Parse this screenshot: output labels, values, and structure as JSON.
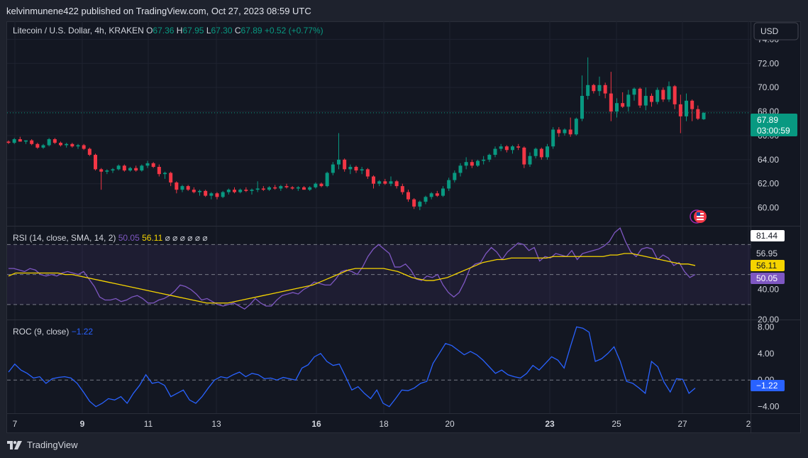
{
  "header": {
    "published": "kelvinmunene422 published on TradingView.com, Oct 27, 2023 08:59 UTC"
  },
  "legend": {
    "symbol": "Litecoin / U.S. Dollar, 4h, KRAKEN",
    "o_label": "O",
    "o_value": "67.36",
    "h_label": "H",
    "h_value": "67.95",
    "l_label": "L",
    "l_value": "67.30",
    "c_label": "C",
    "c_value": "67.89",
    "change": "+0.52 (+0.77%)"
  },
  "currency_button": "USD",
  "price_badge": {
    "value": "67.89",
    "countdown": "03:00:59",
    "color": "#089981"
  },
  "rsi_legend": {
    "title": "RSI (14, close, SMA, 14, 2)",
    "rsi": "50.05",
    "sma": "56.11",
    "na": "⌀ ⌀ ⌀ ⌀ ⌀ ⌀"
  },
  "roc_legend": {
    "title": "ROC (9, close)",
    "value": "−1.22"
  },
  "footer": {
    "brand": "TradingView"
  },
  "colors": {
    "up": "#089981",
    "down": "#f23645",
    "rsi": "#7e57c2",
    "sma": "#f5d400",
    "roc": "#2962ff"
  },
  "chart_data": [
    {
      "type": "candlestick",
      "symbol": "LTC/USD",
      "interval": "4h",
      "ylim": [
        58.5,
        75.5
      ],
      "y_ticks": [
        "74.00",
        "72.00",
        "70.00",
        "68.00",
        "66.00",
        "64.00",
        "62.00",
        "60.00"
      ],
      "x_ticks": [
        "7",
        "9",
        "11",
        "13",
        "16",
        "18",
        "20",
        "23",
        "25",
        "27",
        "2"
      ],
      "last_price": 67.89,
      "candles": [
        [
          65.5,
          65.6,
          65.3,
          65.4
        ],
        [
          65.4,
          65.8,
          65.3,
          65.7
        ],
        [
          65.7,
          65.9,
          65.5,
          65.5
        ],
        [
          65.5,
          65.6,
          65.3,
          65.6
        ],
        [
          65.6,
          65.7,
          65.2,
          65.3
        ],
        [
          65.3,
          65.4,
          64.9,
          65.0
        ],
        [
          65.0,
          65.3,
          64.9,
          65.2
        ],
        [
          65.2,
          65.8,
          65.1,
          65.7
        ],
        [
          65.7,
          65.8,
          65.3,
          65.4
        ],
        [
          65.4,
          65.5,
          65.1,
          65.2
        ],
        [
          65.2,
          65.4,
          65.0,
          65.3
        ],
        [
          65.3,
          65.4,
          65.0,
          65.1
        ],
        [
          65.1,
          65.3,
          64.9,
          65.2
        ],
        [
          65.2,
          65.3,
          64.8,
          64.9
        ],
        [
          64.9,
          65.0,
          64.3,
          64.4
        ],
        [
          64.4,
          64.5,
          63.1,
          63.2
        ],
        [
          63.2,
          63.3,
          61.5,
          63.0
        ],
        [
          63.0,
          63.2,
          62.8,
          63.1
        ],
        [
          63.1,
          63.3,
          62.9,
          63.2
        ],
        [
          63.2,
          63.6,
          63.1,
          63.5
        ],
        [
          63.5,
          63.6,
          63.0,
          63.1
        ],
        [
          63.1,
          63.4,
          63.0,
          63.3
        ],
        [
          63.3,
          63.5,
          63.0,
          63.1
        ],
        [
          63.1,
          63.6,
          63.0,
          63.5
        ],
        [
          63.5,
          63.9,
          63.3,
          63.7
        ],
        [
          63.7,
          63.8,
          63.3,
          63.4
        ],
        [
          63.4,
          63.6,
          62.6,
          62.8
        ],
        [
          62.8,
          63.0,
          62.4,
          62.9
        ],
        [
          62.9,
          63.0,
          61.8,
          62.1
        ],
        [
          62.1,
          62.2,
          61.2,
          61.5
        ],
        [
          61.5,
          61.9,
          61.3,
          61.8
        ],
        [
          61.8,
          61.9,
          61.4,
          61.5
        ],
        [
          61.5,
          61.7,
          61.2,
          61.3
        ],
        [
          61.3,
          61.5,
          61.0,
          61.4
        ],
        [
          61.4,
          61.5,
          60.9,
          61.0
        ],
        [
          61.0,
          61.3,
          60.7,
          61.2
        ],
        [
          61.2,
          61.3,
          60.7,
          60.9
        ],
        [
          60.9,
          61.4,
          60.8,
          61.3
        ],
        [
          61.3,
          61.6,
          61.1,
          61.5
        ],
        [
          61.5,
          61.7,
          61.2,
          61.3
        ],
        [
          61.3,
          61.6,
          61.2,
          61.5
        ],
        [
          61.5,
          61.7,
          61.3,
          61.4
        ],
        [
          61.4,
          61.6,
          61.1,
          61.5
        ],
        [
          61.5,
          62.2,
          61.3,
          61.6
        ],
        [
          61.6,
          61.8,
          61.4,
          61.5
        ],
        [
          61.5,
          61.8,
          61.4,
          61.7
        ],
        [
          61.7,
          61.9,
          61.5,
          61.6
        ],
        [
          61.6,
          61.9,
          61.4,
          61.8
        ],
        [
          61.8,
          62.0,
          61.6,
          61.7
        ],
        [
          61.7,
          61.8,
          61.5,
          61.6
        ],
        [
          61.6,
          61.8,
          61.4,
          61.7
        ],
        [
          61.7,
          61.8,
          61.5,
          61.5
        ],
        [
          61.5,
          61.8,
          61.4,
          61.7
        ],
        [
          61.7,
          62.1,
          61.6,
          62.0
        ],
        [
          62.0,
          62.1,
          61.7,
          61.8
        ],
        [
          61.8,
          63.0,
          61.7,
          62.9
        ],
        [
          62.9,
          63.8,
          62.7,
          63.6
        ],
        [
          63.6,
          66.2,
          63.2,
          64.0
        ],
        [
          64.0,
          64.1,
          63.0,
          63.2
        ],
        [
          63.2,
          63.6,
          62.8,
          63.4
        ],
        [
          63.4,
          63.5,
          62.9,
          63.1
        ],
        [
          63.1,
          63.4,
          62.8,
          63.2
        ],
        [
          63.2,
          63.3,
          62.4,
          62.6
        ],
        [
          62.6,
          62.7,
          61.6,
          62.0
        ],
        [
          62.0,
          62.3,
          61.8,
          62.2
        ],
        [
          62.2,
          62.4,
          61.9,
          62.0
        ],
        [
          62.0,
          62.6,
          61.8,
          62.2
        ],
        [
          62.2,
          62.3,
          61.6,
          61.8
        ],
        [
          61.8,
          62.0,
          61.1,
          61.3
        ],
        [
          61.3,
          61.5,
          60.5,
          60.7
        ],
        [
          60.7,
          60.8,
          59.9,
          60.1
        ],
        [
          60.1,
          60.6,
          59.8,
          60.5
        ],
        [
          60.5,
          61.0,
          60.3,
          60.9
        ],
        [
          60.9,
          61.3,
          60.7,
          61.2
        ],
        [
          61.2,
          61.4,
          60.9,
          61.0
        ],
        [
          61.0,
          61.8,
          60.9,
          61.6
        ],
        [
          61.6,
          62.5,
          61.4,
          62.3
        ],
        [
          62.3,
          63.1,
          62.1,
          62.9
        ],
        [
          62.9,
          63.7,
          62.6,
          63.5
        ],
        [
          63.5,
          64.2,
          63.2,
          63.8
        ],
        [
          63.8,
          64.0,
          63.3,
          63.5
        ],
        [
          63.5,
          64.0,
          63.4,
          63.9
        ],
        [
          63.9,
          64.3,
          63.6,
          64.0
        ],
        [
          64.0,
          64.5,
          63.8,
          64.4
        ],
        [
          64.4,
          65.1,
          64.2,
          64.9
        ],
        [
          64.9,
          65.3,
          64.7,
          65.1
        ],
        [
          65.1,
          65.2,
          64.6,
          64.8
        ],
        [
          64.8,
          65.2,
          64.5,
          65.1
        ],
        [
          65.1,
          65.3,
          64.8,
          65.0
        ],
        [
          65.0,
          65.1,
          63.3,
          63.6
        ],
        [
          63.6,
          64.6,
          63.4,
          64.3
        ],
        [
          64.3,
          65.0,
          64.1,
          64.9
        ],
        [
          64.9,
          65.0,
          64.0,
          64.2
        ],
        [
          64.2,
          65.3,
          64.0,
          65.1
        ],
        [
          65.1,
          66.7,
          64.9,
          66.5
        ],
        [
          66.5,
          66.7,
          65.9,
          66.2
        ],
        [
          66.2,
          66.6,
          66.0,
          66.5
        ],
        [
          66.5,
          67.5,
          65.9,
          66.1
        ],
        [
          66.1,
          67.5,
          66.0,
          67.4
        ],
        [
          67.4,
          71.0,
          67.2,
          69.3
        ],
        [
          69.3,
          72.5,
          69.0,
          70.2
        ],
        [
          70.2,
          70.3,
          69.5,
          69.7
        ],
        [
          69.7,
          70.9,
          69.3,
          70.2
        ],
        [
          70.2,
          70.4,
          69.1,
          69.5
        ],
        [
          69.5,
          71.3,
          67.2,
          68.0
        ],
        [
          68.0,
          69.1,
          67.5,
          68.7
        ],
        [
          68.7,
          69.6,
          68.3,
          68.4
        ],
        [
          68.4,
          69.8,
          68.0,
          69.4
        ],
        [
          69.4,
          70.0,
          68.9,
          69.9
        ],
        [
          69.9,
          70.0,
          68.3,
          68.5
        ],
        [
          68.5,
          70.0,
          68.1,
          69.3
        ],
        [
          69.3,
          69.5,
          68.4,
          68.8
        ],
        [
          68.8,
          70.0,
          68.6,
          69.8
        ],
        [
          69.8,
          70.0,
          68.8,
          69.0
        ],
        [
          69.0,
          70.5,
          68.8,
          70.1
        ],
        [
          70.1,
          70.2,
          68.2,
          68.6
        ],
        [
          68.6,
          69.4,
          66.2,
          67.6
        ],
        [
          67.6,
          69.5,
          67.2,
          68.9
        ],
        [
          68.9,
          69.0,
          67.2,
          68.2
        ],
        [
          68.2,
          68.5,
          67.3,
          67.4
        ],
        [
          67.36,
          67.95,
          67.3,
          67.89
        ]
      ]
    },
    {
      "type": "line",
      "name": "RSI (14, close, SMA, 14, 2)",
      "ylim": [
        20,
        82
      ],
      "y_ticks": [
        "20.00",
        "40.00"
      ],
      "bands": [
        70,
        50,
        30
      ],
      "labels": {
        "rsi_max": "81.44",
        "upper": "56.95",
        "sma": "56.11",
        "rsi": "50.05"
      },
      "rsi": [
        54,
        54,
        53,
        52,
        54,
        53,
        50,
        49,
        50,
        49,
        51,
        52,
        51,
        50,
        52,
        47,
        42,
        35,
        33,
        33,
        34,
        32,
        33,
        35,
        36,
        34,
        31,
        31,
        33,
        34,
        36,
        39,
        43,
        42,
        40,
        37,
        33,
        34,
        32,
        30,
        29,
        30,
        31,
        29,
        27,
        30,
        34,
        31,
        29,
        29,
        33,
        36,
        37,
        38,
        37,
        40,
        42,
        45,
        44,
        43,
        43,
        47,
        52,
        53,
        52,
        50,
        55,
        62,
        67,
        70,
        67,
        64,
        55,
        55,
        57,
        53,
        47,
        46,
        49,
        48,
        50,
        43,
        38,
        35,
        38,
        45,
        54,
        57,
        58,
        64,
        68,
        65,
        60,
        65,
        68,
        71,
        70,
        66,
        68,
        59,
        62,
        61,
        64,
        63,
        62,
        66,
        60,
        64,
        65,
        66,
        67,
        69,
        72,
        78,
        81,
        72,
        65,
        62,
        67,
        68,
        67,
        60,
        63,
        61,
        56,
        58,
        52,
        48,
        50
      ],
      "sma": [
        49,
        51,
        51,
        51,
        51,
        51,
        51,
        51,
        50,
        50,
        49,
        48,
        47,
        46,
        45,
        44,
        43,
        42,
        41,
        40,
        39,
        38,
        37,
        36,
        35,
        34,
        33,
        32,
        31,
        31,
        31,
        31,
        32,
        33,
        34,
        35,
        36,
        37,
        38,
        39,
        40,
        41,
        42,
        43,
        45,
        47,
        49,
        51,
        53,
        54,
        54,
        54,
        54,
        54,
        53,
        52,
        50,
        48,
        47,
        46,
        46,
        47,
        48,
        50,
        52,
        54,
        56,
        58,
        59,
        60,
        60,
        61,
        61,
        61,
        61,
        61,
        61,
        62,
        62,
        62,
        62,
        62,
        62,
        62,
        62,
        63,
        63,
        64,
        64,
        63,
        62,
        61,
        60,
        59,
        58,
        57,
        57,
        56
      ]
    },
    {
      "type": "line",
      "name": "ROC (9, close)",
      "ylim": [
        -5,
        9
      ],
      "y_ticks": [
        "8.00",
        "4.00",
        "0.00",
        "−4.00"
      ],
      "last_value": -1.22,
      "roc": [
        1.2,
        2.4,
        1.5,
        1.0,
        0.3,
        0.5,
        -0.5,
        0.2,
        0.4,
        0.5,
        0.3,
        -0.5,
        -1.8,
        -3.2,
        -4.0,
        -3.5,
        -2.8,
        -3.0,
        -2.5,
        -3.5,
        -2.0,
        -0.8,
        0.8,
        -0.5,
        -0.3,
        -0.8,
        -2.5,
        -2.0,
        -1.5,
        -3.0,
        -3.5,
        -2.5,
        -1.2,
        0.0,
        0.5,
        0.3,
        0.8,
        1.2,
        0.5,
        1.0,
        0.8,
        0.2,
        0.3,
        0.0,
        0.4,
        0.2,
        0.0,
        1.8,
        2.3,
        3.5,
        4.0,
        2.8,
        2.2,
        2.4,
        0.5,
        -1.5,
        -1.0,
        -2.0,
        -2.8,
        -1.5,
        -3.5,
        -4.0,
        -2.8,
        -1.5,
        -1.6,
        -1.2,
        -0.5,
        -0.2,
        2.5,
        4.0,
        5.5,
        5.2,
        4.5,
        3.8,
        4.3,
        3.8,
        3.0,
        2.0,
        1.0,
        1.5,
        0.8,
        0.5,
        0.3,
        1.0,
        2.2,
        1.5,
        2.5,
        3.5,
        3.0,
        1.8,
        5.0,
        8.0,
        7.8,
        7.2,
        2.8,
        3.2,
        4.0,
        5.0,
        2.8,
        -0.2,
        -0.5,
        -1.2,
        -2.0,
        2.8,
        2.0,
        -0.3,
        -1.8,
        0.2,
        0.1,
        -2.0,
        -1.2
      ]
    }
  ]
}
